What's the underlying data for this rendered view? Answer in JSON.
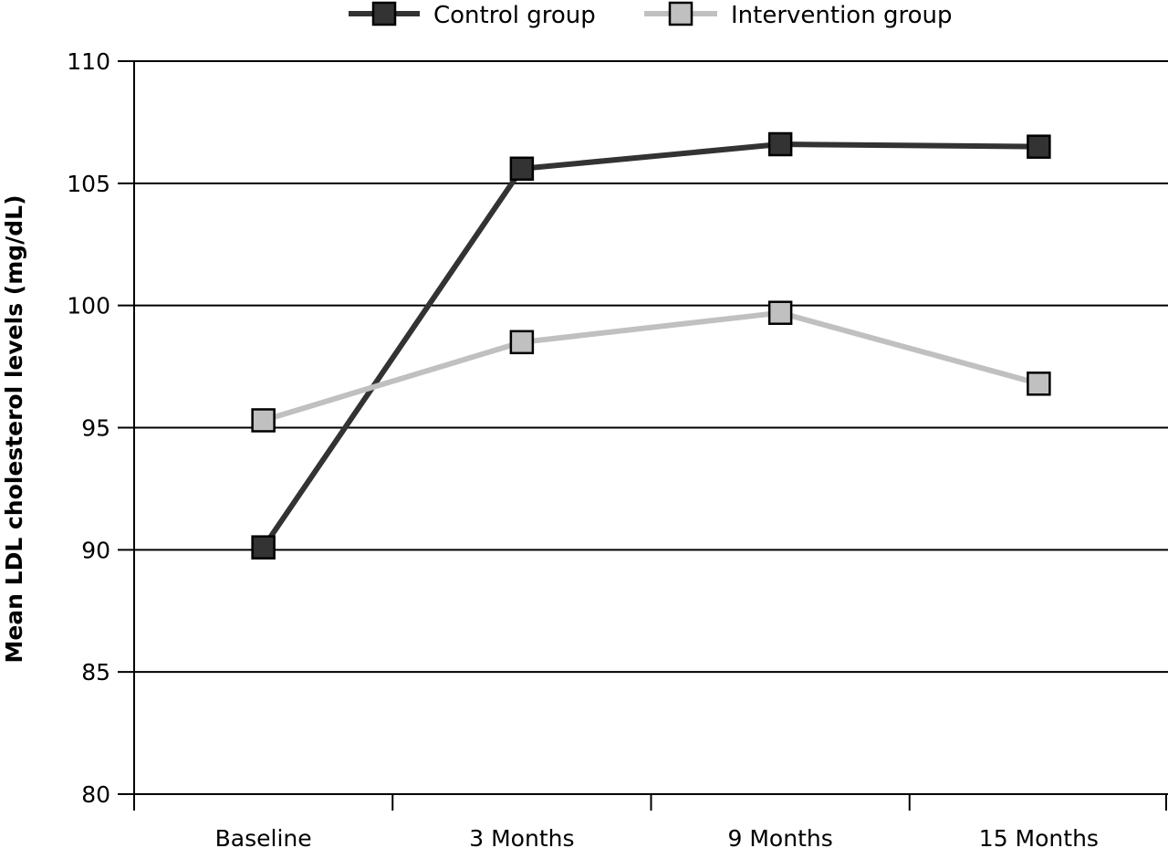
{
  "chart_data": {
    "type": "line",
    "title": "",
    "xlabel": "",
    "ylabel": "Mean LDL cholesterol levels (mg/dL)",
    "categories": [
      "Baseline",
      "3 Months",
      "9 Months",
      "15 Months"
    ],
    "ylim": [
      80,
      110
    ],
    "yticks": [
      80,
      85,
      90,
      95,
      100,
      105,
      110
    ],
    "grid": true,
    "legend_position": "top",
    "series": [
      {
        "name": "Control group",
        "values": [
          90.1,
          105.6,
          106.6,
          106.5
        ],
        "color": "#333333"
      },
      {
        "name": "Intervention group",
        "values": [
          95.3,
          98.5,
          99.7,
          96.8
        ],
        "color": "#c0c0c0"
      }
    ]
  }
}
